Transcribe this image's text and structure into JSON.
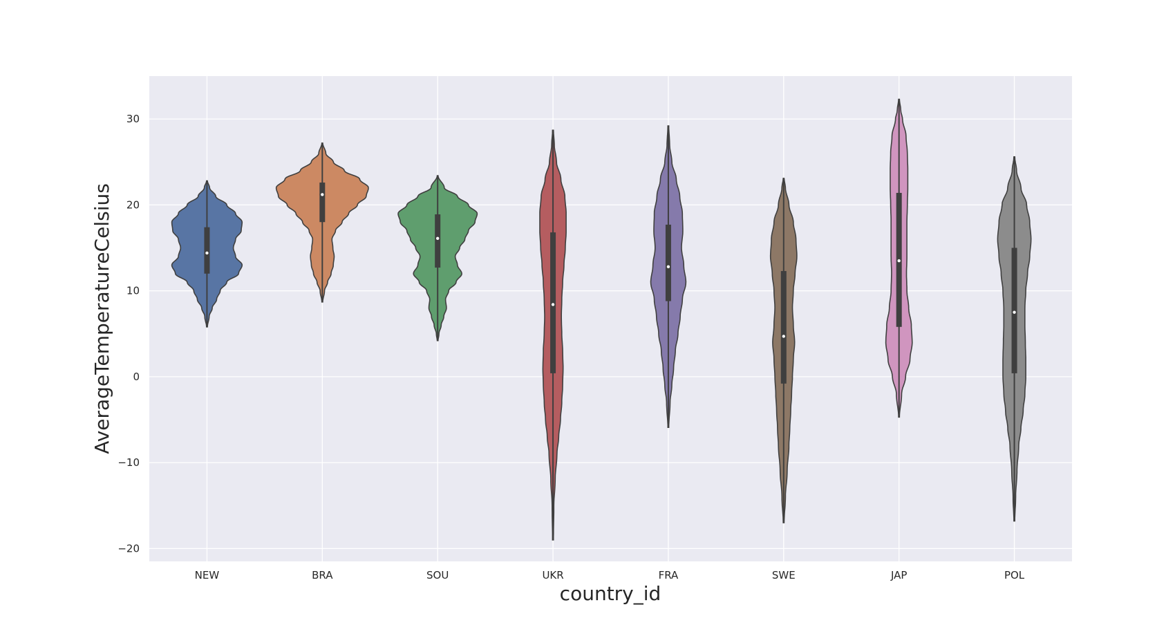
{
  "chart_data": {
    "type": "violin",
    "xlabel": "country_id",
    "ylabel": "AverageTemperatureCelsius",
    "ylim": [
      -21.5,
      35
    ],
    "yticks": [
      -20,
      -10,
      0,
      10,
      20,
      30
    ],
    "ytick_labels": [
      "−20",
      "−10",
      "0",
      "10",
      "20",
      "30"
    ],
    "grid": true,
    "legend": "none",
    "categories": [
      "NEW",
      "BRA",
      "SOU",
      "UKR",
      "FRA",
      "SWE",
      "JAP",
      "POL"
    ],
    "series": [
      {
        "category": "NEW",
        "color": "#5875a4",
        "min": 5.8,
        "q1": 12.0,
        "median": 14.4,
        "q3": 17.4,
        "max": 22.8,
        "density": [
          [
            5.8,
            0.01
          ],
          [
            7,
            0.05
          ],
          [
            8,
            0.12
          ],
          [
            9,
            0.22
          ],
          [
            10,
            0.3
          ],
          [
            11,
            0.45
          ],
          [
            12,
            0.72
          ],
          [
            13,
            0.8
          ],
          [
            14,
            0.65
          ],
          [
            15,
            0.6
          ],
          [
            16,
            0.65
          ],
          [
            17,
            0.78
          ],
          [
            18,
            0.8
          ],
          [
            19,
            0.65
          ],
          [
            20,
            0.45
          ],
          [
            21,
            0.2
          ],
          [
            22,
            0.06
          ],
          [
            22.8,
            0.01
          ]
        ]
      },
      {
        "category": "BRA",
        "color": "#cc8963",
        "min": 8.7,
        "q1": 18.0,
        "median": 21.2,
        "q3": 22.6,
        "max": 27.2,
        "density": [
          [
            8.7,
            0.01
          ],
          [
            10,
            0.05
          ],
          [
            11,
            0.12
          ],
          [
            12,
            0.2
          ],
          [
            13,
            0.25
          ],
          [
            14,
            0.27
          ],
          [
            15,
            0.24
          ],
          [
            16,
            0.22
          ],
          [
            17,
            0.3
          ],
          [
            18,
            0.45
          ],
          [
            19,
            0.6
          ],
          [
            20,
            0.8
          ],
          [
            21,
            1.0
          ],
          [
            22,
            1.05
          ],
          [
            23,
            0.85
          ],
          [
            24,
            0.5
          ],
          [
            25,
            0.25
          ],
          [
            26,
            0.08
          ],
          [
            27.2,
            0.01
          ]
        ]
      },
      {
        "category": "SOU",
        "color": "#5f9e6e",
        "min": 4.2,
        "q1": 12.7,
        "median": 16.1,
        "q3": 18.9,
        "max": 23.4,
        "density": [
          [
            4.2,
            0.01
          ],
          [
            5,
            0.03
          ],
          [
            6,
            0.08
          ],
          [
            7,
            0.14
          ],
          [
            8,
            0.2
          ],
          [
            9,
            0.18
          ],
          [
            10,
            0.25
          ],
          [
            11,
            0.42
          ],
          [
            12,
            0.55
          ],
          [
            13,
            0.45
          ],
          [
            14,
            0.4
          ],
          [
            15,
            0.5
          ],
          [
            16,
            0.62
          ],
          [
            17,
            0.7
          ],
          [
            18,
            0.85
          ],
          [
            19,
            0.9
          ],
          [
            20,
            0.7
          ],
          [
            21,
            0.45
          ],
          [
            22,
            0.15
          ],
          [
            23.4,
            0.01
          ]
        ]
      },
      {
        "category": "UKR",
        "color": "#b55d60",
        "min": -19.0,
        "q1": 0.4,
        "median": 8.4,
        "q3": 16.8,
        "max": 28.7,
        "density": [
          [
            -19,
            0.01
          ],
          [
            -15,
            0.02
          ],
          [
            -12,
            0.05
          ],
          [
            -9,
            0.09
          ],
          [
            -7,
            0.13
          ],
          [
            -5,
            0.17
          ],
          [
            -3,
            0.2
          ],
          [
            -1,
            0.22
          ],
          [
            1,
            0.23
          ],
          [
            3,
            0.22
          ],
          [
            5,
            0.2
          ],
          [
            7,
            0.19
          ],
          [
            9,
            0.2
          ],
          [
            11,
            0.22
          ],
          [
            13,
            0.25
          ],
          [
            15,
            0.28
          ],
          [
            17,
            0.3
          ],
          [
            19,
            0.3
          ],
          [
            21,
            0.27
          ],
          [
            23,
            0.18
          ],
          [
            25,
            0.08
          ],
          [
            27,
            0.03
          ],
          [
            28.7,
            0.01
          ]
        ]
      },
      {
        "category": "FRA",
        "color": "#857aab",
        "min": -5.9,
        "q1": 8.8,
        "median": 12.8,
        "q3": 17.7,
        "max": 29.2,
        "density": [
          [
            -5.9,
            0.01
          ],
          [
            -3,
            0.04
          ],
          [
            -1,
            0.08
          ],
          [
            1,
            0.12
          ],
          [
            3,
            0.16
          ],
          [
            5,
            0.22
          ],
          [
            7,
            0.27
          ],
          [
            9,
            0.32
          ],
          [
            11,
            0.4
          ],
          [
            13,
            0.35
          ],
          [
            15,
            0.3
          ],
          [
            17,
            0.33
          ],
          [
            19,
            0.32
          ],
          [
            21,
            0.26
          ],
          [
            23,
            0.18
          ],
          [
            25,
            0.08
          ],
          [
            27,
            0.03
          ],
          [
            29.2,
            0.01
          ]
        ]
      },
      {
        "category": "SWE",
        "color": "#8d7866",
        "min": -17.0,
        "q1": -0.8,
        "median": 4.7,
        "q3": 12.3,
        "max": 23.1,
        "density": [
          [
            -17,
            0.01
          ],
          [
            -14,
            0.04
          ],
          [
            -11,
            0.08
          ],
          [
            -8,
            0.12
          ],
          [
            -6,
            0.14
          ],
          [
            -4,
            0.16
          ],
          [
            -2,
            0.18
          ],
          [
            0,
            0.2
          ],
          [
            2,
            0.22
          ],
          [
            4,
            0.25
          ],
          [
            6,
            0.22
          ],
          [
            8,
            0.2
          ],
          [
            10,
            0.22
          ],
          [
            12,
            0.26
          ],
          [
            14,
            0.3
          ],
          [
            16,
            0.28
          ],
          [
            18,
            0.22
          ],
          [
            20,
            0.12
          ],
          [
            22,
            0.04
          ],
          [
            23.1,
            0.01
          ]
        ]
      },
      {
        "category": "JAP",
        "color": "#d095bf",
        "min": -4.7,
        "q1": 5.8,
        "median": 13.5,
        "q3": 21.4,
        "max": 32.3,
        "density": [
          [
            -4.7,
            0.01
          ],
          [
            -2,
            0.06
          ],
          [
            0,
            0.15
          ],
          [
            2,
            0.25
          ],
          [
            4,
            0.3
          ],
          [
            6,
            0.28
          ],
          [
            8,
            0.22
          ],
          [
            10,
            0.18
          ],
          [
            12,
            0.17
          ],
          [
            14,
            0.18
          ],
          [
            16,
            0.18
          ],
          [
            18,
            0.18
          ],
          [
            20,
            0.19
          ],
          [
            22,
            0.2
          ],
          [
            24,
            0.2
          ],
          [
            26,
            0.19
          ],
          [
            28,
            0.16
          ],
          [
            30,
            0.08
          ],
          [
            31,
            0.04
          ],
          [
            32.3,
            0.01
          ]
        ]
      },
      {
        "category": "POL",
        "color": "#8c8c8c",
        "min": -16.8,
        "q1": 0.4,
        "median": 7.5,
        "q3": 15.0,
        "max": 25.6,
        "density": [
          [
            -16.8,
            0.01
          ],
          [
            -14,
            0.03
          ],
          [
            -11,
            0.06
          ],
          [
            -8,
            0.1
          ],
          [
            -6,
            0.15
          ],
          [
            -4,
            0.2
          ],
          [
            -2,
            0.24
          ],
          [
            0,
            0.26
          ],
          [
            2,
            0.26
          ],
          [
            4,
            0.25
          ],
          [
            6,
            0.24
          ],
          [
            8,
            0.24
          ],
          [
            10,
            0.26
          ],
          [
            12,
            0.3
          ],
          [
            14,
            0.35
          ],
          [
            16,
            0.38
          ],
          [
            18,
            0.35
          ],
          [
            20,
            0.28
          ],
          [
            22,
            0.15
          ],
          [
            24,
            0.05
          ],
          [
            25.6,
            0.01
          ]
        ]
      }
    ]
  }
}
